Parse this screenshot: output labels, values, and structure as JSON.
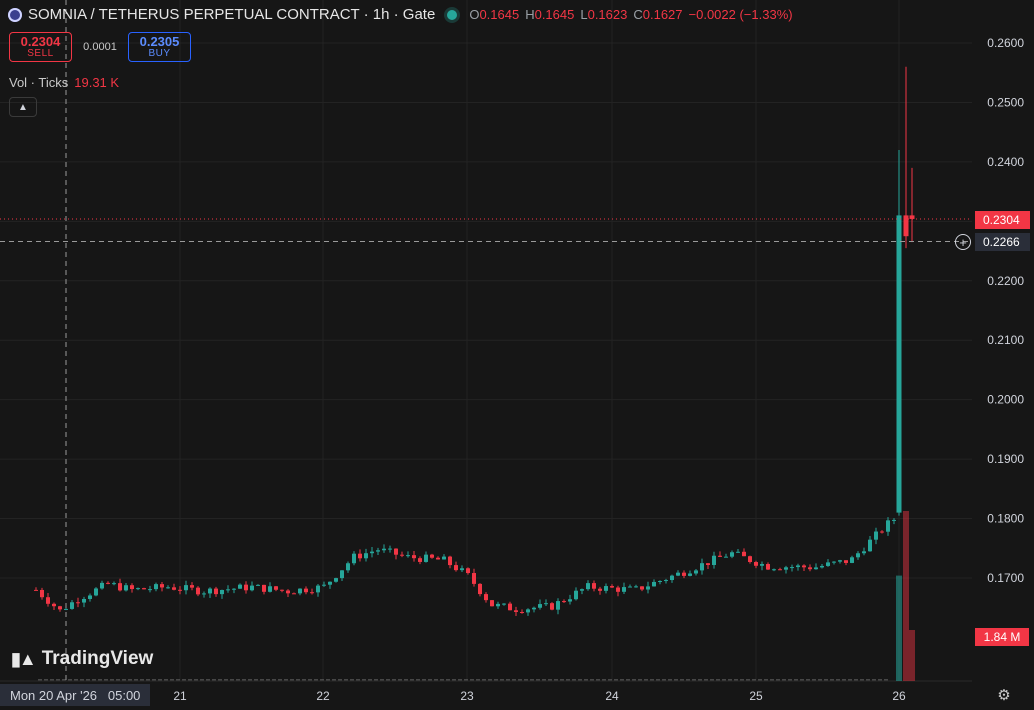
{
  "header": {
    "title": "SOMNIA / TETHERUS PERPETUAL CONTRACT · 1h · Gate",
    "ohlc": {
      "o_label": "O",
      "o": "0.1645",
      "h_label": "H",
      "h": "0.1645",
      "l_label": "L",
      "l": "0.1623",
      "c_label": "C",
      "c": "0.1627",
      "change": "−0.0022 (−1.33%)"
    }
  },
  "trade": {
    "sell_price": "0.2304",
    "sell_label": "SELL",
    "spread": "0.0001",
    "buy_price": "0.2305",
    "buy_label": "BUY"
  },
  "volume": {
    "label": "Vol · Ticks",
    "value": "19.31 K",
    "axis_tag": "1.84 M"
  },
  "price_tags": {
    "last": "0.2304",
    "crosshair": "0.2266"
  },
  "crosshair_time": "Mon 20 Apr '26   05:00",
  "brand": {
    "name": "TradingView"
  },
  "colors": {
    "up": "#26a69a",
    "down": "#f23645",
    "background": "#161616",
    "grid": "#232323"
  },
  "icons": [
    "symbol-logo-icon",
    "live-status-icon",
    "collapse-chevron-icon",
    "crosshair-plus-icon",
    "settings-gear-icon"
  ],
  "chart_data": {
    "type": "candlestick",
    "y_ticks": [
      "0.2600",
      "0.2500",
      "0.2400",
      "0.2300",
      "0.2200",
      "0.2100",
      "0.2000",
      "0.1900",
      "0.1800",
      "0.1700"
    ],
    "ylim": [
      0.162,
      0.263
    ],
    "x_ticks": [
      "21",
      "22",
      "23",
      "24",
      "25",
      "26"
    ],
    "crosshair": {
      "x": "Mon 20 Apr '26 05:00",
      "y": 0.2266
    },
    "close_path": [
      {
        "x": "20 Apr 00:00",
        "close": 0.168
      },
      {
        "x": "20 Apr 04:00",
        "close": 0.1645
      },
      {
        "x": "20 Apr 07:00",
        "close": 0.1665
      },
      {
        "x": "20 Apr 12:00",
        "close": 0.169
      },
      {
        "x": "20 Apr 16:00",
        "close": 0.168
      },
      {
        "x": "20 Apr 22:00",
        "close": 0.1685
      },
      {
        "x": "21 Apr 04:00",
        "close": 0.1678
      },
      {
        "x": "21 Apr 12:00",
        "close": 0.1685
      },
      {
        "x": "21 Apr 18:00",
        "close": 0.1678
      },
      {
        "x": "22 Apr 00:00",
        "close": 0.1685
      },
      {
        "x": "22 Apr 05:00",
        "close": 0.1735
      },
      {
        "x": "22 Apr 09:00",
        "close": 0.1748
      },
      {
        "x": "22 Apr 14:00",
        "close": 0.1735
      },
      {
        "x": "22 Apr 20:00",
        "close": 0.173
      },
      {
        "x": "23 Apr 00:00",
        "close": 0.1705
      },
      {
        "x": "23 Apr 04:00",
        "close": 0.1655
      },
      {
        "x": "23 Apr 08:00",
        "close": 0.1648
      },
      {
        "x": "23 Apr 14:00",
        "close": 0.1652
      },
      {
        "x": "23 Apr 20:00",
        "close": 0.1685
      },
      {
        "x": "24 Apr 04:00",
        "close": 0.168
      },
      {
        "x": "24 Apr 12:00",
        "close": 0.171
      },
      {
        "x": "24 Apr 20:00",
        "close": 0.1742
      },
      {
        "x": "25 Apr 02:00",
        "close": 0.172
      },
      {
        "x": "25 Apr 10:00",
        "close": 0.1718
      },
      {
        "x": "25 Apr 16:00",
        "close": 0.173
      },
      {
        "x": "25 Apr 22:00",
        "close": 0.179
      },
      {
        "x": "26 Apr 00:00",
        "close": 0.1805
      }
    ],
    "spike_candles": [
      {
        "x": "26 Apr 00:00",
        "open": 0.181,
        "high": 0.242,
        "low": 0.1805,
        "close": 0.231
      },
      {
        "x": "26 Apr 01:00",
        "open": 0.231,
        "high": 0.256,
        "low": 0.2255,
        "close": 0.2275
      },
      {
        "x": "26 Apr 02:00",
        "open": 0.231,
        "high": 0.239,
        "low": 0.2265,
        "close": 0.2304
      }
    ],
    "volume_bars": [
      {
        "x": "26 Apr 00:00",
        "volume_fraction": 0.62,
        "direction": "up"
      },
      {
        "x": "26 Apr 00:00",
        "volume_fraction": 1.0,
        "direction": "down"
      },
      {
        "x": "26 Apr 01:00",
        "volume_fraction": 0.3,
        "direction": "down"
      }
    ]
  }
}
